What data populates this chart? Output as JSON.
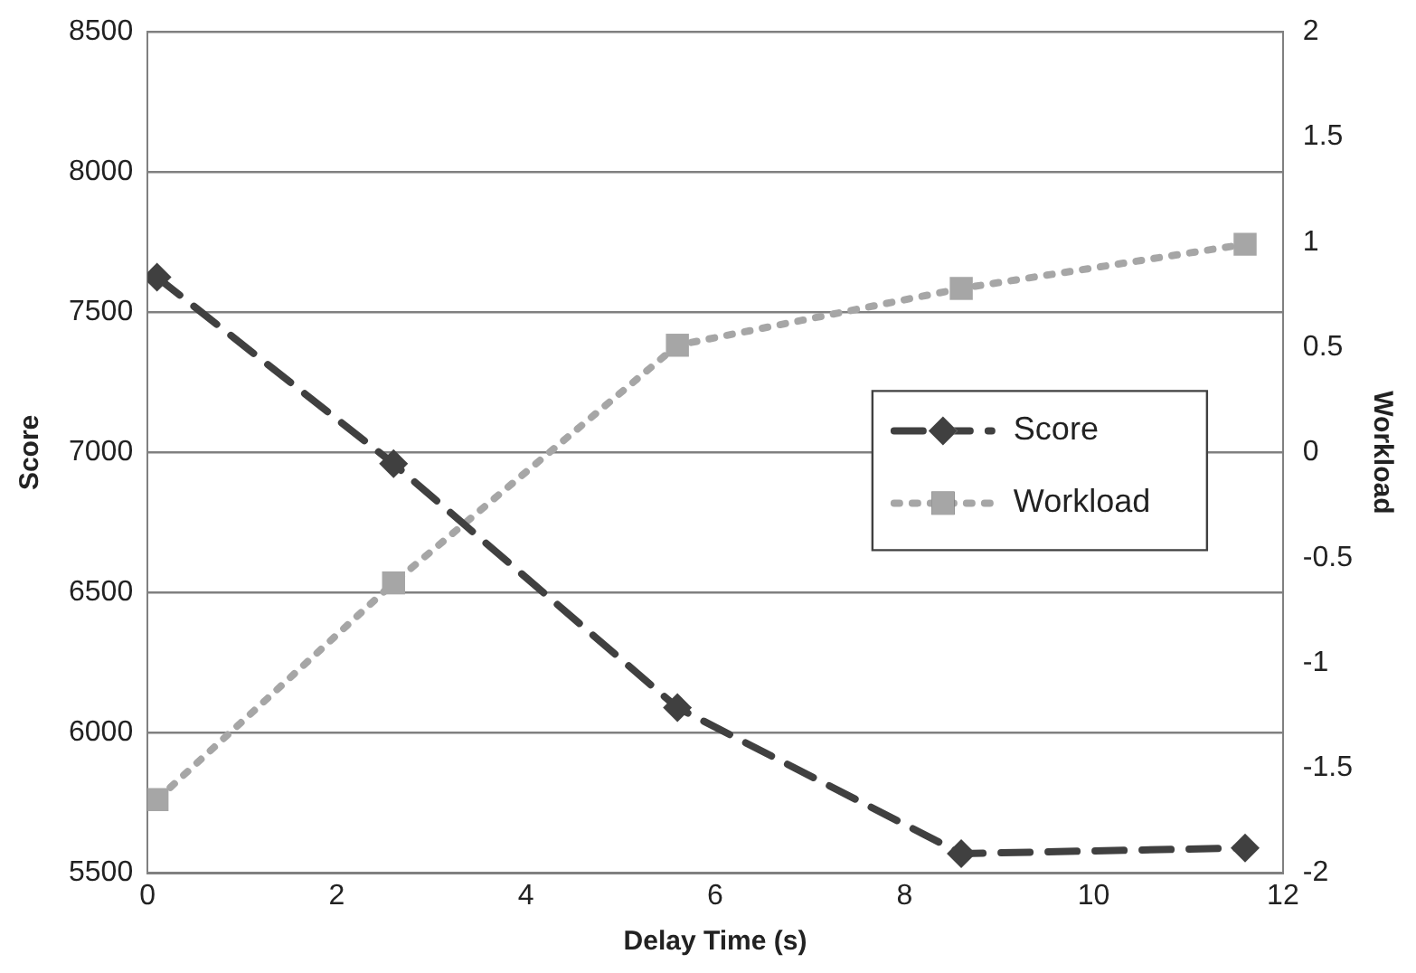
{
  "chart_data": {
    "type": "line",
    "xlabel": "Delay Time (s)",
    "ylabel": "Score",
    "y2label": "Workload",
    "xlim": [
      0,
      12
    ],
    "xticks": [
      0,
      2,
      4,
      6,
      8,
      10,
      12
    ],
    "ylim": [
      5500,
      8500
    ],
    "yticks": [
      5500,
      6000,
      6500,
      7000,
      7500,
      8000,
      8500
    ],
    "y2lim": [
      -2,
      2
    ],
    "y2ticks": [
      -2,
      -1.5,
      -1,
      -0.5,
      0,
      0.5,
      1,
      1.5,
      2
    ],
    "grid": "y",
    "legend": "right",
    "series": [
      {
        "name": "Score",
        "color": "#404040",
        "marker": "diamond",
        "line_style": "dashed",
        "x": [
          0.1,
          2.6,
          5.6,
          8.6,
          11.6
        ],
        "values": [
          7625,
          6960,
          6090,
          5570,
          5590
        ]
      },
      {
        "name": "Workload",
        "color": "#a6a6a6",
        "marker": "square",
        "line_style": "dotted",
        "axis": "y2",
        "x": [
          0.1,
          2.6,
          5.6,
          8.6,
          11.6
        ],
        "values": [
          -1.65,
          -0.62,
          0.51,
          0.78,
          0.99
        ]
      }
    ]
  }
}
